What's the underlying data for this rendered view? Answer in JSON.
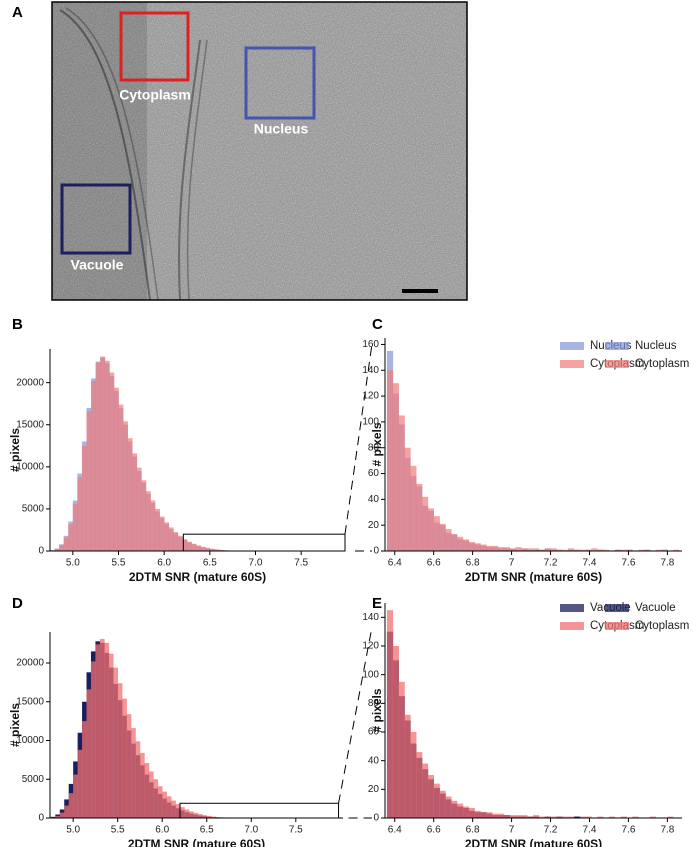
{
  "panel_a": {
    "label": "A",
    "regions": [
      "Cytoplasm",
      "Nucleus",
      "Vacuole"
    ]
  },
  "chart_data": [
    {
      "type": "histogram",
      "panel": "B",
      "xlabel": "2DTM SNR (mature 60S)",
      "ylabel": "# pixels",
      "legend": "upper right",
      "opacity": 0.7,
      "bins": [
        4.75,
        4.8,
        4.85,
        4.9,
        4.95,
        5,
        5.05,
        5.1,
        5.15,
        5.2,
        5.25,
        5.3,
        5.35,
        5.4,
        5.45,
        5.5,
        5.55,
        5.6,
        5.65,
        5.7,
        5.75,
        5.8,
        5.85,
        5.9,
        5.95,
        6,
        6.05,
        6.1,
        6.15,
        6.2,
        6.25,
        6.3,
        6.35,
        6.4,
        6.45,
        6.5,
        6.55,
        6.6,
        6.65,
        6.7,
        6.75
      ],
      "series": [
        {
          "name": "Nucleus",
          "color": "#8494d6",
          "values": [
            100,
            300,
            800,
            1800,
            3500,
            6000,
            9200,
            13000,
            17000,
            20500,
            22500,
            23000,
            22300,
            20800,
            19000,
            17000,
            15000,
            13000,
            11200,
            9500,
            8100,
            6800,
            5700,
            4700,
            3900,
            3200,
            2600,
            2100,
            1650,
            1300,
            1000,
            800,
            600,
            450,
            330,
            240,
            170,
            120,
            80,
            50
          ]
        },
        {
          "name": "Cytoplasm",
          "color": "#f07a7a",
          "values": [
            80,
            250,
            700,
            1600,
            3200,
            5600,
            8800,
            12500,
            16600,
            20200,
            22400,
            23100,
            22600,
            21200,
            19400,
            17400,
            15400,
            13400,
            11600,
            9900,
            8400,
            7100,
            6000,
            5000,
            4100,
            3400,
            2800,
            2250,
            1800,
            1400,
            1100,
            860,
            660,
            500,
            370,
            270,
            190,
            130,
            90,
            60
          ]
        }
      ],
      "xlim": [
        4.75,
        7.98
      ],
      "ylim": [
        0,
        24000
      ],
      "xticks": [
        {
          "value": 5,
          "label": "5.0"
        },
        {
          "value": 5.5,
          "label": "5.5"
        },
        {
          "value": 6,
          "label": "6.0"
        },
        {
          "value": 6.5,
          "label": "6.5"
        },
        {
          "value": 7,
          "label": "7.0"
        },
        {
          "value": 7.5,
          "label": "7.5"
        }
      ],
      "yticks": [
        0,
        5000,
        10000,
        15000,
        20000
      ],
      "zoom": {
        "x": [
          6.21,
          7.98
        ],
        "y": [
          0,
          2000
        ]
      }
    },
    {
      "type": "histogram",
      "panel": "C",
      "xlabel": "2DTM SNR (mature 60S)",
      "ylabel": "# pixels",
      "legend": "upper right",
      "opacity": 0.7,
      "bins": [
        6.36,
        6.39,
        6.42,
        6.45,
        6.48,
        6.51,
        6.54,
        6.57,
        6.6,
        6.63,
        6.66,
        6.69,
        6.72,
        6.75,
        6.78,
        6.81,
        6.84,
        6.87,
        6.9,
        6.93,
        6.96,
        6.99,
        7.02,
        7.05,
        7.08,
        7.11,
        7.14,
        7.17,
        7.2,
        7.23,
        7.26,
        7.29,
        7.32,
        7.35,
        7.38,
        7.41,
        7.44,
        7.47,
        7.5,
        7.53,
        7.56,
        7.59,
        7.62,
        7.65,
        7.68,
        7.71,
        7.74,
        7.77,
        7.8,
        7.83,
        7.86
      ],
      "series": [
        {
          "name": "Nucleus",
          "color": "#8494d6",
          "values": [
            155,
            122,
            98,
            72,
            58,
            50,
            35,
            31,
            22,
            20,
            14,
            13,
            9,
            8,
            6,
            5,
            4,
            3,
            3,
            2,
            2,
            2,
            1,
            2,
            1,
            1,
            1,
            2,
            1,
            1,
            0,
            1,
            1,
            0,
            1,
            0,
            1,
            0,
            0,
            1,
            0,
            1,
            0,
            0,
            1,
            0,
            0,
            1,
            0,
            0
          ]
        },
        {
          "name": "Cytoplasm",
          "color": "#f07a7a",
          "values": [
            140,
            130,
            105,
            80,
            66,
            52,
            42,
            33,
            27,
            21,
            17,
            13,
            11,
            9,
            7,
            6,
            5,
            4,
            4,
            3,
            3,
            2,
            3,
            2,
            2,
            2,
            1,
            2,
            2,
            1,
            1,
            2,
            1,
            1,
            1,
            2,
            1,
            1,
            0,
            1,
            1,
            1,
            0,
            1,
            1,
            0,
            1,
            1,
            0,
            1
          ]
        }
      ],
      "xlim": [
        6.35,
        7.875
      ],
      "ylim": [
        0,
        165
      ],
      "xticks": [
        6.4,
        6.6,
        6.8,
        7.0,
        7.2,
        7.4,
        7.6,
        7.8
      ],
      "yticks": [
        0,
        20,
        40,
        60,
        80,
        100,
        120,
        140,
        160
      ]
    },
    {
      "type": "histogram",
      "panel": "D",
      "xlabel": "2DTM SNR (mature 60S)",
      "ylabel": "# pixels",
      "legend": "upper right",
      "opacity": 0.75,
      "bins": [
        4.75,
        4.8,
        4.85,
        4.9,
        4.95,
        5,
        5.05,
        5.1,
        5.15,
        5.2,
        5.25,
        5.3,
        5.35,
        5.4,
        5.45,
        5.5,
        5.55,
        5.6,
        5.65,
        5.7,
        5.75,
        5.8,
        5.85,
        5.9,
        5.95,
        6,
        6.05,
        6.1,
        6.15,
        6.2,
        6.25,
        6.3,
        6.35,
        6.4,
        6.45,
        6.5,
        6.55,
        6.6,
        6.65,
        6.7,
        6.75
      ],
      "series": [
        {
          "name": "Vacuole",
          "color": "#1d1f5c",
          "values": [
            150,
            450,
            1100,
            2400,
            4400,
            7300,
            11000,
            15000,
            18800,
            21500,
            22800,
            22600,
            21300,
            19400,
            17300,
            15200,
            13200,
            11300,
            9600,
            8100,
            6800,
            5600,
            4600,
            3800,
            3100,
            2500,
            2000,
            1600,
            1250,
            970,
            750,
            570,
            430,
            320,
            230,
            160,
            110,
            75,
            50,
            30
          ]
        },
        {
          "name": "Cytoplasm",
          "color": "#f07070",
          "values": [
            80,
            250,
            700,
            1600,
            3200,
            5600,
            8800,
            12500,
            16600,
            20200,
            22400,
            23100,
            22600,
            21200,
            19400,
            17400,
            15400,
            13400,
            11600,
            9900,
            8400,
            7100,
            6000,
            5000,
            4100,
            3400,
            2800,
            2250,
            1800,
            1400,
            1100,
            860,
            660,
            500,
            370,
            270,
            190,
            130,
            90,
            60
          ]
        }
      ],
      "xlim": [
        4.74,
        8.03
      ],
      "ylim": [
        0,
        24000
      ],
      "xticks": [
        {
          "value": 5,
          "label": "5.0"
        },
        {
          "value": 5.5,
          "label": "5.5"
        },
        {
          "value": 6,
          "label": "6.0"
        },
        {
          "value": 6.5,
          "label": "6.5"
        },
        {
          "value": 7,
          "label": "7.0"
        },
        {
          "value": 7.5,
          "label": "7.5"
        }
      ],
      "yticks": [
        0,
        5000,
        10000,
        15000,
        20000
      ],
      "zoom": {
        "x": [
          6.2,
          7.98
        ],
        "y": [
          0,
          1900
        ]
      }
    },
    {
      "type": "histogram",
      "panel": "E",
      "xlabel": "2DTM SNR (mature 60S)",
      "ylabel": "# pixels",
      "legend": "upper right",
      "opacity": 0.75,
      "bins": [
        6.36,
        6.39,
        6.42,
        6.45,
        6.48,
        6.51,
        6.54,
        6.57,
        6.6,
        6.63,
        6.66,
        6.69,
        6.72,
        6.75,
        6.78,
        6.81,
        6.84,
        6.87,
        6.9,
        6.93,
        6.96,
        6.99,
        7.02,
        7.05,
        7.08,
        7.11,
        7.14,
        7.17,
        7.2,
        7.23,
        7.26,
        7.29,
        7.32,
        7.35,
        7.38,
        7.41,
        7.44,
        7.47,
        7.5,
        7.53,
        7.56,
        7.59,
        7.62,
        7.65,
        7.68,
        7.71,
        7.74,
        7.77,
        7.8,
        7.83,
        7.86
      ],
      "series": [
        {
          "name": "Vacuole",
          "color": "#1d1f5c",
          "values": [
            130,
            110,
            85,
            68,
            52,
            42,
            34,
            27,
            21,
            17,
            13,
            10,
            8,
            7,
            5,
            4,
            4,
            3,
            2,
            2,
            2,
            1,
            1,
            1,
            1,
            1,
            0,
            1,
            0,
            1,
            0,
            0,
            1,
            0,
            0,
            0,
            0,
            0,
            0,
            0,
            0,
            0,
            0,
            0,
            0,
            0,
            0,
            0,
            0,
            0
          ]
        },
        {
          "name": "Cytoplasm",
          "color": "#f07070",
          "values": [
            145,
            120,
            95,
            72,
            60,
            46,
            38,
            30,
            24,
            19,
            15,
            12,
            10,
            8,
            7,
            5,
            4,
            4,
            3,
            3,
            2,
            2,
            2,
            2,
            1,
            2,
            1,
            1,
            1,
            1,
            1,
            1,
            0,
            1,
            1,
            0,
            1,
            0,
            1,
            0,
            1,
            0,
            1,
            0,
            0,
            1,
            0,
            0,
            1,
            0
          ]
        }
      ],
      "xlim": [
        6.35,
        7.875
      ],
      "ylim": [
        0,
        150
      ],
      "xticks": [
        6.4,
        6.6,
        6.8,
        7.0,
        7.2,
        7.4,
        7.6,
        7.8
      ],
      "yticks": [
        0,
        20,
        40,
        60,
        80,
        100,
        120,
        140
      ]
    }
  ]
}
